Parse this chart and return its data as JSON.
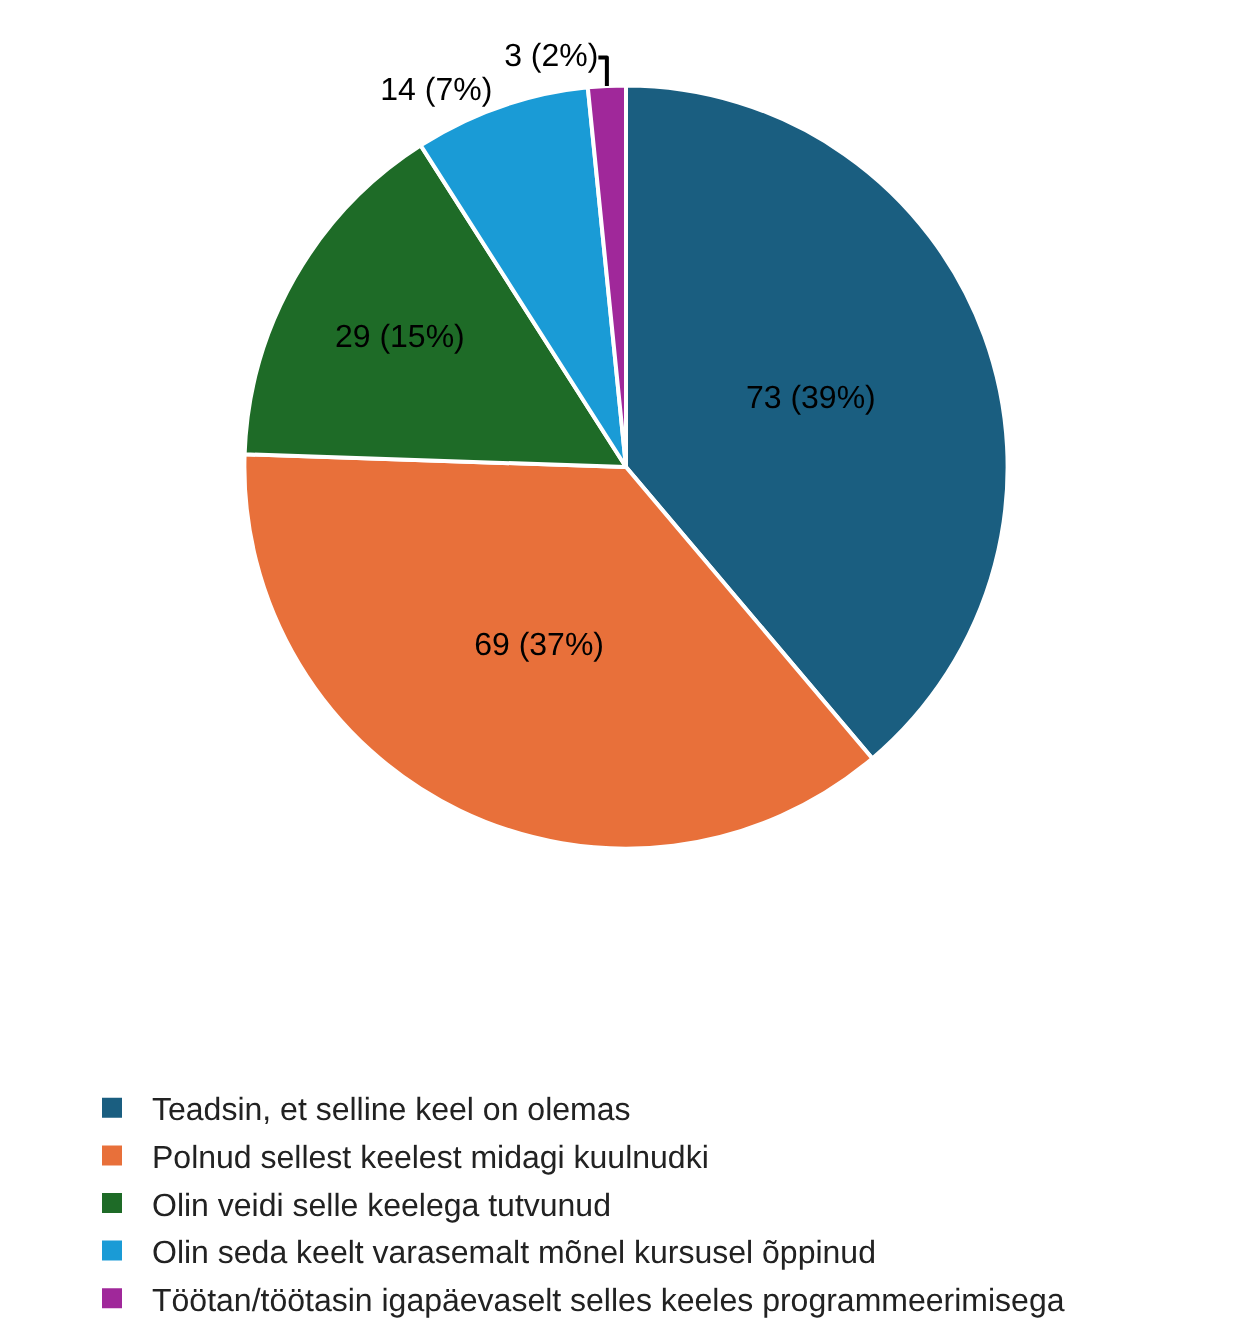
{
  "chart_data": {
    "type": "pie",
    "categories": [
      "Teadsin, et selline keel on olemas",
      "Polnud sellest keelest midagi kuulnudki",
      "Olin veidi selle keelega tutvunud",
      "Olin seda keelt varasemalt mõnel kursusel õppinud",
      "Töötan/töötasin igapäevaselt selles keeles programmeerimisega"
    ],
    "values": [
      73,
      69,
      29,
      14,
      3
    ],
    "value_labels": [
      "73 (39%)",
      "69 (37%)",
      "29 (15%)",
      "14 (7%)",
      "3 (2%)"
    ],
    "colors": [
      "#1a5e80",
      "#e8703a",
      "#1e6b27",
      "#1a9bd6",
      "#a0289a"
    ],
    "legend": "bottom"
  }
}
